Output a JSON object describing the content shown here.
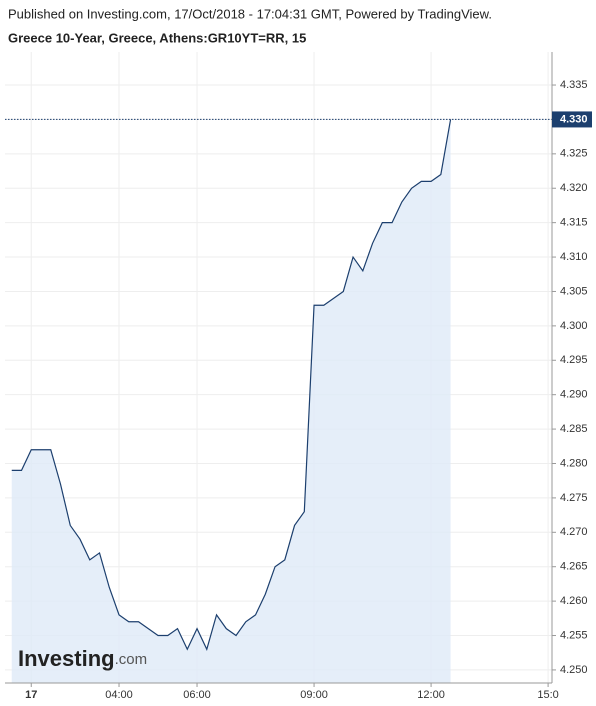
{
  "chart_data": {
    "type": "line",
    "published": "Published on Investing.com, 17/Oct/2018 - 17:04:31 GMT, Powered by TradingView.",
    "title": "Greece 10-Year, Greece, Athens:GR10YT=RR, 15",
    "watermark": {
      "brand": "Investing",
      "suffix": ".com"
    },
    "x": [
      1.25,
      1.5,
      1.75,
      2,
      2.25,
      2.5,
      2.75,
      3,
      3.25,
      3.5,
      3.75,
      4,
      4.25,
      4.5,
      4.75,
      5,
      5.25,
      5.5,
      5.75,
      6,
      6.25,
      6.5,
      6.75,
      7,
      7.25,
      7.5,
      7.75,
      8,
      8.25,
      8.5,
      8.75,
      9,
      9.25,
      9.5,
      9.75,
      10,
      10.25,
      10.5,
      10.75,
      11,
      11.25,
      11.5,
      11.75,
      12,
      12.25,
      12.5
    ],
    "series": [
      {
        "color": "#1c3f6e",
        "fill": "#deeaf7",
        "values": [
          4.279,
          4.279,
          4.282,
          4.282,
          4.282,
          4.277,
          4.271,
          4.269,
          4.266,
          4.267,
          4.262,
          4.258,
          4.257,
          4.257,
          4.256,
          4.255,
          4.255,
          4.256,
          4.253,
          4.256,
          4.253,
          4.258,
          4.256,
          4.255,
          4.257,
          4.258,
          4.261,
          4.265,
          4.266,
          4.271,
          4.273,
          4.303,
          4.303,
          4.304,
          4.305,
          4.31,
          4.308,
          4.312,
          4.315,
          4.315,
          4.318,
          4.32,
          4.321,
          4.321,
          4.322,
          4.33
        ]
      }
    ],
    "current_value_label": "4.330",
    "xlim": [
      1.077,
      15.1
    ],
    "xticks": [
      {
        "value": 1.75,
        "label": "17"
      },
      {
        "value": 4,
        "label": "04:00"
      },
      {
        "value": 6,
        "label": "06:00"
      },
      {
        "value": 9,
        "label": "09:00"
      },
      {
        "value": 12,
        "label": "12:00"
      },
      {
        "value": 15,
        "label": "15:0"
      }
    ],
    "ylim": [
      4.2481,
      4.3398
    ],
    "yticks": [
      {
        "value": 4.25,
        "label": "4.250"
      },
      {
        "value": 4.255,
        "label": "4.255"
      },
      {
        "value": 4.26,
        "label": "4.260"
      },
      {
        "value": 4.265,
        "label": "4.265"
      },
      {
        "value": 4.27,
        "label": "4.270"
      },
      {
        "value": 4.275,
        "label": "4.275"
      },
      {
        "value": 4.28,
        "label": "4.280"
      },
      {
        "value": 4.285,
        "label": "4.285"
      },
      {
        "value": 4.29,
        "label": "4.290"
      },
      {
        "value": 4.295,
        "label": "4.295"
      },
      {
        "value": 4.3,
        "label": "4.300"
      },
      {
        "value": 4.305,
        "label": "4.305"
      },
      {
        "value": 4.31,
        "label": "4.310"
      },
      {
        "value": 4.315,
        "label": "4.315"
      },
      {
        "value": 4.32,
        "label": "4.320"
      },
      {
        "value": 4.325,
        "label": "4.325"
      },
      {
        "value": 4.33,
        "label": "4.330"
      },
      {
        "value": 4.335,
        "label": "4.335"
      }
    ],
    "grid": true
  }
}
